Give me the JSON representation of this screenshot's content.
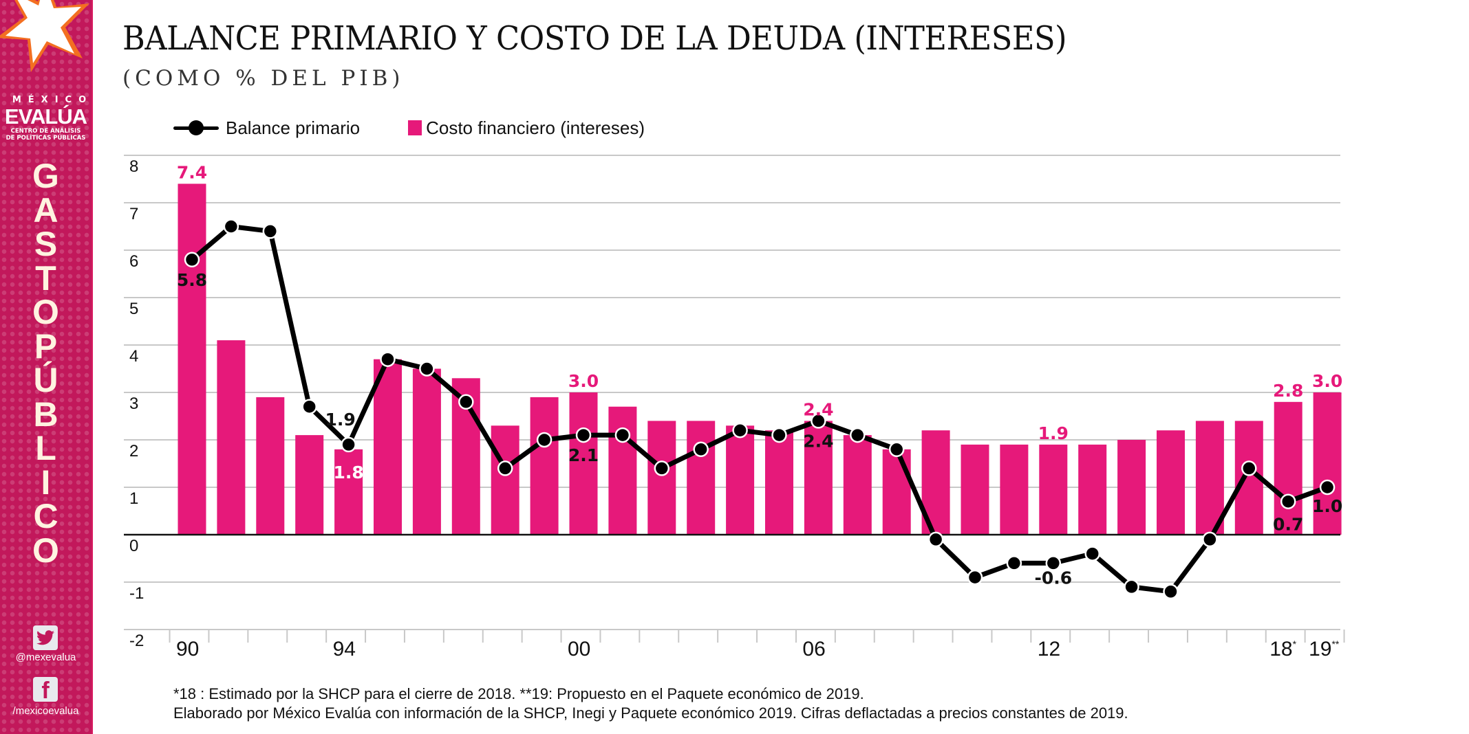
{
  "sidebar": {
    "brand_top": "MÉXICO",
    "brand_main": "EVALÚA",
    "brand_sub_1": "CENTRO DE ANÁLISIS",
    "brand_sub_2": "DE POLÍTICAS PÚBLICAS",
    "vertical_title": [
      "G",
      "A",
      "S",
      "T",
      "O",
      "P",
      "Ú",
      "B",
      "L",
      "I",
      "C",
      "O"
    ],
    "twitter_icon": "twitter-icon",
    "twitter_handle": "@mexevalua",
    "facebook_icon": "facebook-icon",
    "facebook_handle": "/mexicoevalua"
  },
  "colors": {
    "brand": "#c2185b",
    "bar": "#e6197a",
    "line": "#000000"
  },
  "footnotes": {
    "line1": "*18 : Estimado por la SHCP para el cierre de 2018. **19: Propuesto en el Paquete económico de 2019.",
    "line2": "Elaborado por México Evalúa con información de la SHCP, Inegi y Paquete económico 2019. Cifras deflactadas a precios constantes de 2019."
  },
  "chart_data": {
    "type": "bar",
    "title": "BALANCE PRIMARIO Y COSTO DE LA DEUDA (INTERESES)",
    "subtitle": "(COMO % DEL PIB)",
    "xlabel": "",
    "ylabel": "",
    "ylim": [
      -2,
      8
    ],
    "yticks": [
      8,
      7,
      6,
      5,
      4,
      3,
      2,
      1,
      0,
      -1,
      -2
    ],
    "grid": true,
    "legend_position": "top-left",
    "categories": [
      "1990",
      "1991",
      "1992",
      "1993",
      "1994",
      "1995",
      "1996",
      "1997",
      "1998",
      "1999",
      "2000",
      "2001",
      "2002",
      "2003",
      "2004",
      "2005",
      "2006",
      "2007",
      "2008",
      "2009",
      "2010",
      "2011",
      "2012",
      "2013",
      "2014",
      "2015",
      "2016",
      "2017",
      "2018",
      "2019"
    ],
    "x_tick_labels": [
      {
        "index": 0,
        "label": "90"
      },
      {
        "index": 4,
        "label": "94"
      },
      {
        "index": 10,
        "label": "00"
      },
      {
        "index": 16,
        "label": "06"
      },
      {
        "index": 22,
        "label": "12"
      },
      {
        "index": 28,
        "label": "18*"
      },
      {
        "index": 29,
        "label": "19**"
      }
    ],
    "series": [
      {
        "name": "Costo financiero (intereses)",
        "type": "bar",
        "values": [
          7.4,
          4.1,
          2.9,
          2.1,
          1.8,
          3.7,
          3.5,
          3.3,
          2.3,
          2.9,
          3.0,
          2.7,
          2.4,
          2.4,
          2.3,
          2.2,
          2.4,
          2.1,
          1.8,
          2.2,
          1.9,
          1.9,
          1.9,
          1.9,
          2.0,
          2.2,
          2.4,
          2.4,
          2.8,
          3.0
        ],
        "labels": [
          {
            "index": 0,
            "text": "7.4"
          },
          {
            "index": 4,
            "text": "1.8"
          },
          {
            "index": 10,
            "text": "3.0"
          },
          {
            "index": 16,
            "text": "2.4"
          },
          {
            "index": 22,
            "text": "1.9"
          },
          {
            "index": 28,
            "text": "2.8"
          },
          {
            "index": 29,
            "text": "3.0"
          }
        ]
      },
      {
        "name": "Balance primario",
        "type": "line",
        "values": [
          5.8,
          6.5,
          6.4,
          2.7,
          1.9,
          3.7,
          3.5,
          2.8,
          1.4,
          2.0,
          2.1,
          2.1,
          1.4,
          1.8,
          2.2,
          2.1,
          2.4,
          2.1,
          1.8,
          -0.1,
          -0.9,
          -0.6,
          -0.6,
          -0.4,
          -1.1,
          -1.2,
          -0.1,
          1.4,
          0.7,
          1.0
        ],
        "labels": [
          {
            "index": 0,
            "text": "5.8"
          },
          {
            "index": 4,
            "text": "1.9"
          },
          {
            "index": 10,
            "text": "2.1"
          },
          {
            "index": 16,
            "text": "2.4"
          },
          {
            "index": 22,
            "text": "-0.6"
          },
          {
            "index": 28,
            "text": "0.7"
          },
          {
            "index": 29,
            "text": "1.0"
          }
        ]
      }
    ]
  }
}
